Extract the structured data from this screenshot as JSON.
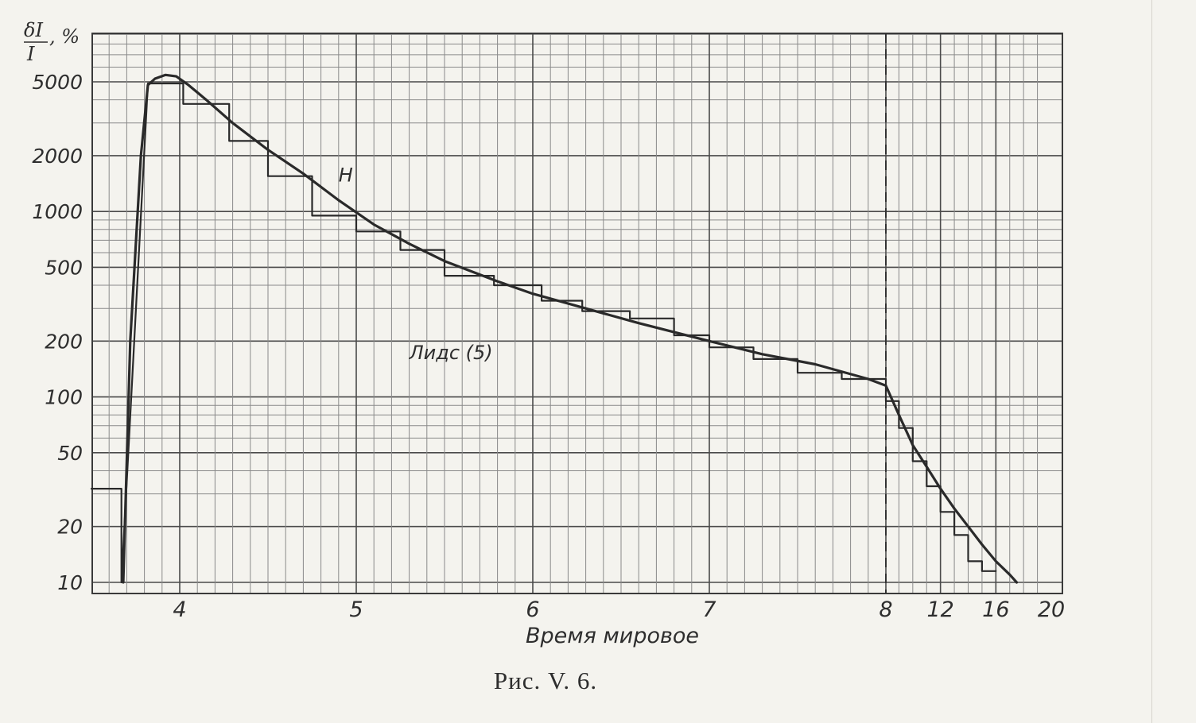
{
  "chart_data": {
    "type": "line",
    "title": "",
    "caption": "Рис. V. 6.",
    "ylabel": {
      "numerator": "δI",
      "denominator": "I",
      "unit": ", %"
    },
    "xlabel": "Время мировое",
    "y_scale": "log",
    "ylim": [
      10,
      10000
    ],
    "y_ticks": [
      {
        "value": 10,
        "label": "10"
      },
      {
        "value": 20,
        "label": "20"
      },
      {
        "value": 50,
        "label": "50"
      },
      {
        "value": 100,
        "label": "100"
      },
      {
        "value": 200,
        "label": "200"
      },
      {
        "value": 500,
        "label": "500"
      },
      {
        "value": 1000,
        "label": "1000"
      },
      {
        "value": 2000,
        "label": "2000"
      },
      {
        "value": 5000,
        "label": "5000"
      }
    ],
    "x_ticks": [
      {
        "value": 4,
        "label": "4"
      },
      {
        "value": 5,
        "label": "5"
      },
      {
        "value": 6,
        "label": "6"
      },
      {
        "value": 7,
        "label": "7"
      },
      {
        "value": 8,
        "label": "8"
      },
      {
        "value": 12,
        "label": "12"
      },
      {
        "value": 16,
        "label": "16"
      },
      {
        "value": 20,
        "label": "20"
      }
    ],
    "x_range": [
      3.5,
      20
    ],
    "grid": true,
    "vertical_marker": {
      "x": 8,
      "style": "dashed"
    },
    "annotations": [
      {
        "text": "H",
        "x": 4.9,
        "y": 1450
      },
      {
        "text": "Лидс (5)",
        "x": 5.3,
        "y": 160
      }
    ],
    "series": [
      {
        "style": "curve",
        "points": [
          [
            3.68,
            10
          ],
          [
            3.72,
            200
          ],
          [
            3.78,
            2000
          ],
          [
            3.82,
            4800
          ],
          [
            3.86,
            5200
          ],
          [
            3.92,
            5450
          ],
          [
            3.98,
            5350
          ],
          [
            4.05,
            4800
          ],
          [
            4.15,
            4000
          ],
          [
            4.3,
            3000
          ],
          [
            4.5,
            2150
          ],
          [
            4.7,
            1600
          ],
          [
            4.9,
            1150
          ],
          [
            5.1,
            850
          ],
          [
            5.3,
            670
          ],
          [
            5.5,
            540
          ],
          [
            5.8,
            420
          ],
          [
            6.0,
            360
          ],
          [
            6.3,
            300
          ],
          [
            6.6,
            250
          ],
          [
            7.0,
            200
          ],
          [
            7.3,
            170
          ],
          [
            7.6,
            150
          ],
          [
            7.9,
            125
          ],
          [
            8.0,
            115
          ],
          [
            9.0,
            80
          ],
          [
            10.0,
            55
          ],
          [
            11.0,
            42
          ],
          [
            12.0,
            32
          ],
          [
            13.0,
            25
          ],
          [
            14.0,
            20
          ],
          [
            15.0,
            16
          ],
          [
            16.0,
            13
          ],
          [
            17.0,
            11
          ],
          [
            17.5,
            10
          ]
        ]
      },
      {
        "style": "step",
        "points": [
          [
            3.5,
            32
          ],
          [
            3.67,
            32
          ],
          [
            3.67,
            10
          ],
          [
            3.82,
            4900
          ],
          [
            4.02,
            4900
          ],
          [
            4.02,
            3800
          ],
          [
            4.28,
            3800
          ],
          [
            4.28,
            2400
          ],
          [
            4.5,
            2400
          ],
          [
            4.5,
            1550
          ],
          [
            4.75,
            1550
          ],
          [
            4.75,
            950
          ],
          [
            5.0,
            950
          ],
          [
            5.0,
            780
          ],
          [
            5.25,
            780
          ],
          [
            5.25,
            620
          ],
          [
            5.5,
            620
          ],
          [
            5.5,
            450
          ],
          [
            5.78,
            450
          ],
          [
            5.78,
            400
          ],
          [
            6.05,
            400
          ],
          [
            6.05,
            330
          ],
          [
            6.28,
            330
          ],
          [
            6.28,
            290
          ],
          [
            6.55,
            290
          ],
          [
            6.55,
            265
          ],
          [
            6.8,
            265
          ],
          [
            6.8,
            215
          ],
          [
            7.0,
            215
          ],
          [
            7.0,
            185
          ],
          [
            7.25,
            185
          ],
          [
            7.25,
            160
          ],
          [
            7.5,
            160
          ],
          [
            7.5,
            135
          ],
          [
            7.75,
            135
          ],
          [
            7.75,
            125
          ],
          [
            8.0,
            125
          ],
          [
            8.0,
            95
          ],
          [
            9.0,
            95
          ],
          [
            9.0,
            68
          ],
          [
            10.0,
            68
          ],
          [
            10.0,
            45
          ],
          [
            11.0,
            45
          ],
          [
            11.0,
            33
          ],
          [
            12.0,
            33
          ],
          [
            12.0,
            24
          ],
          [
            13.0,
            24
          ],
          [
            13.0,
            18
          ],
          [
            14.0,
            18
          ],
          [
            14.0,
            13
          ],
          [
            15.0,
            13
          ],
          [
            15.0,
            11.5
          ],
          [
            16.0,
            11.5
          ]
        ]
      }
    ]
  }
}
